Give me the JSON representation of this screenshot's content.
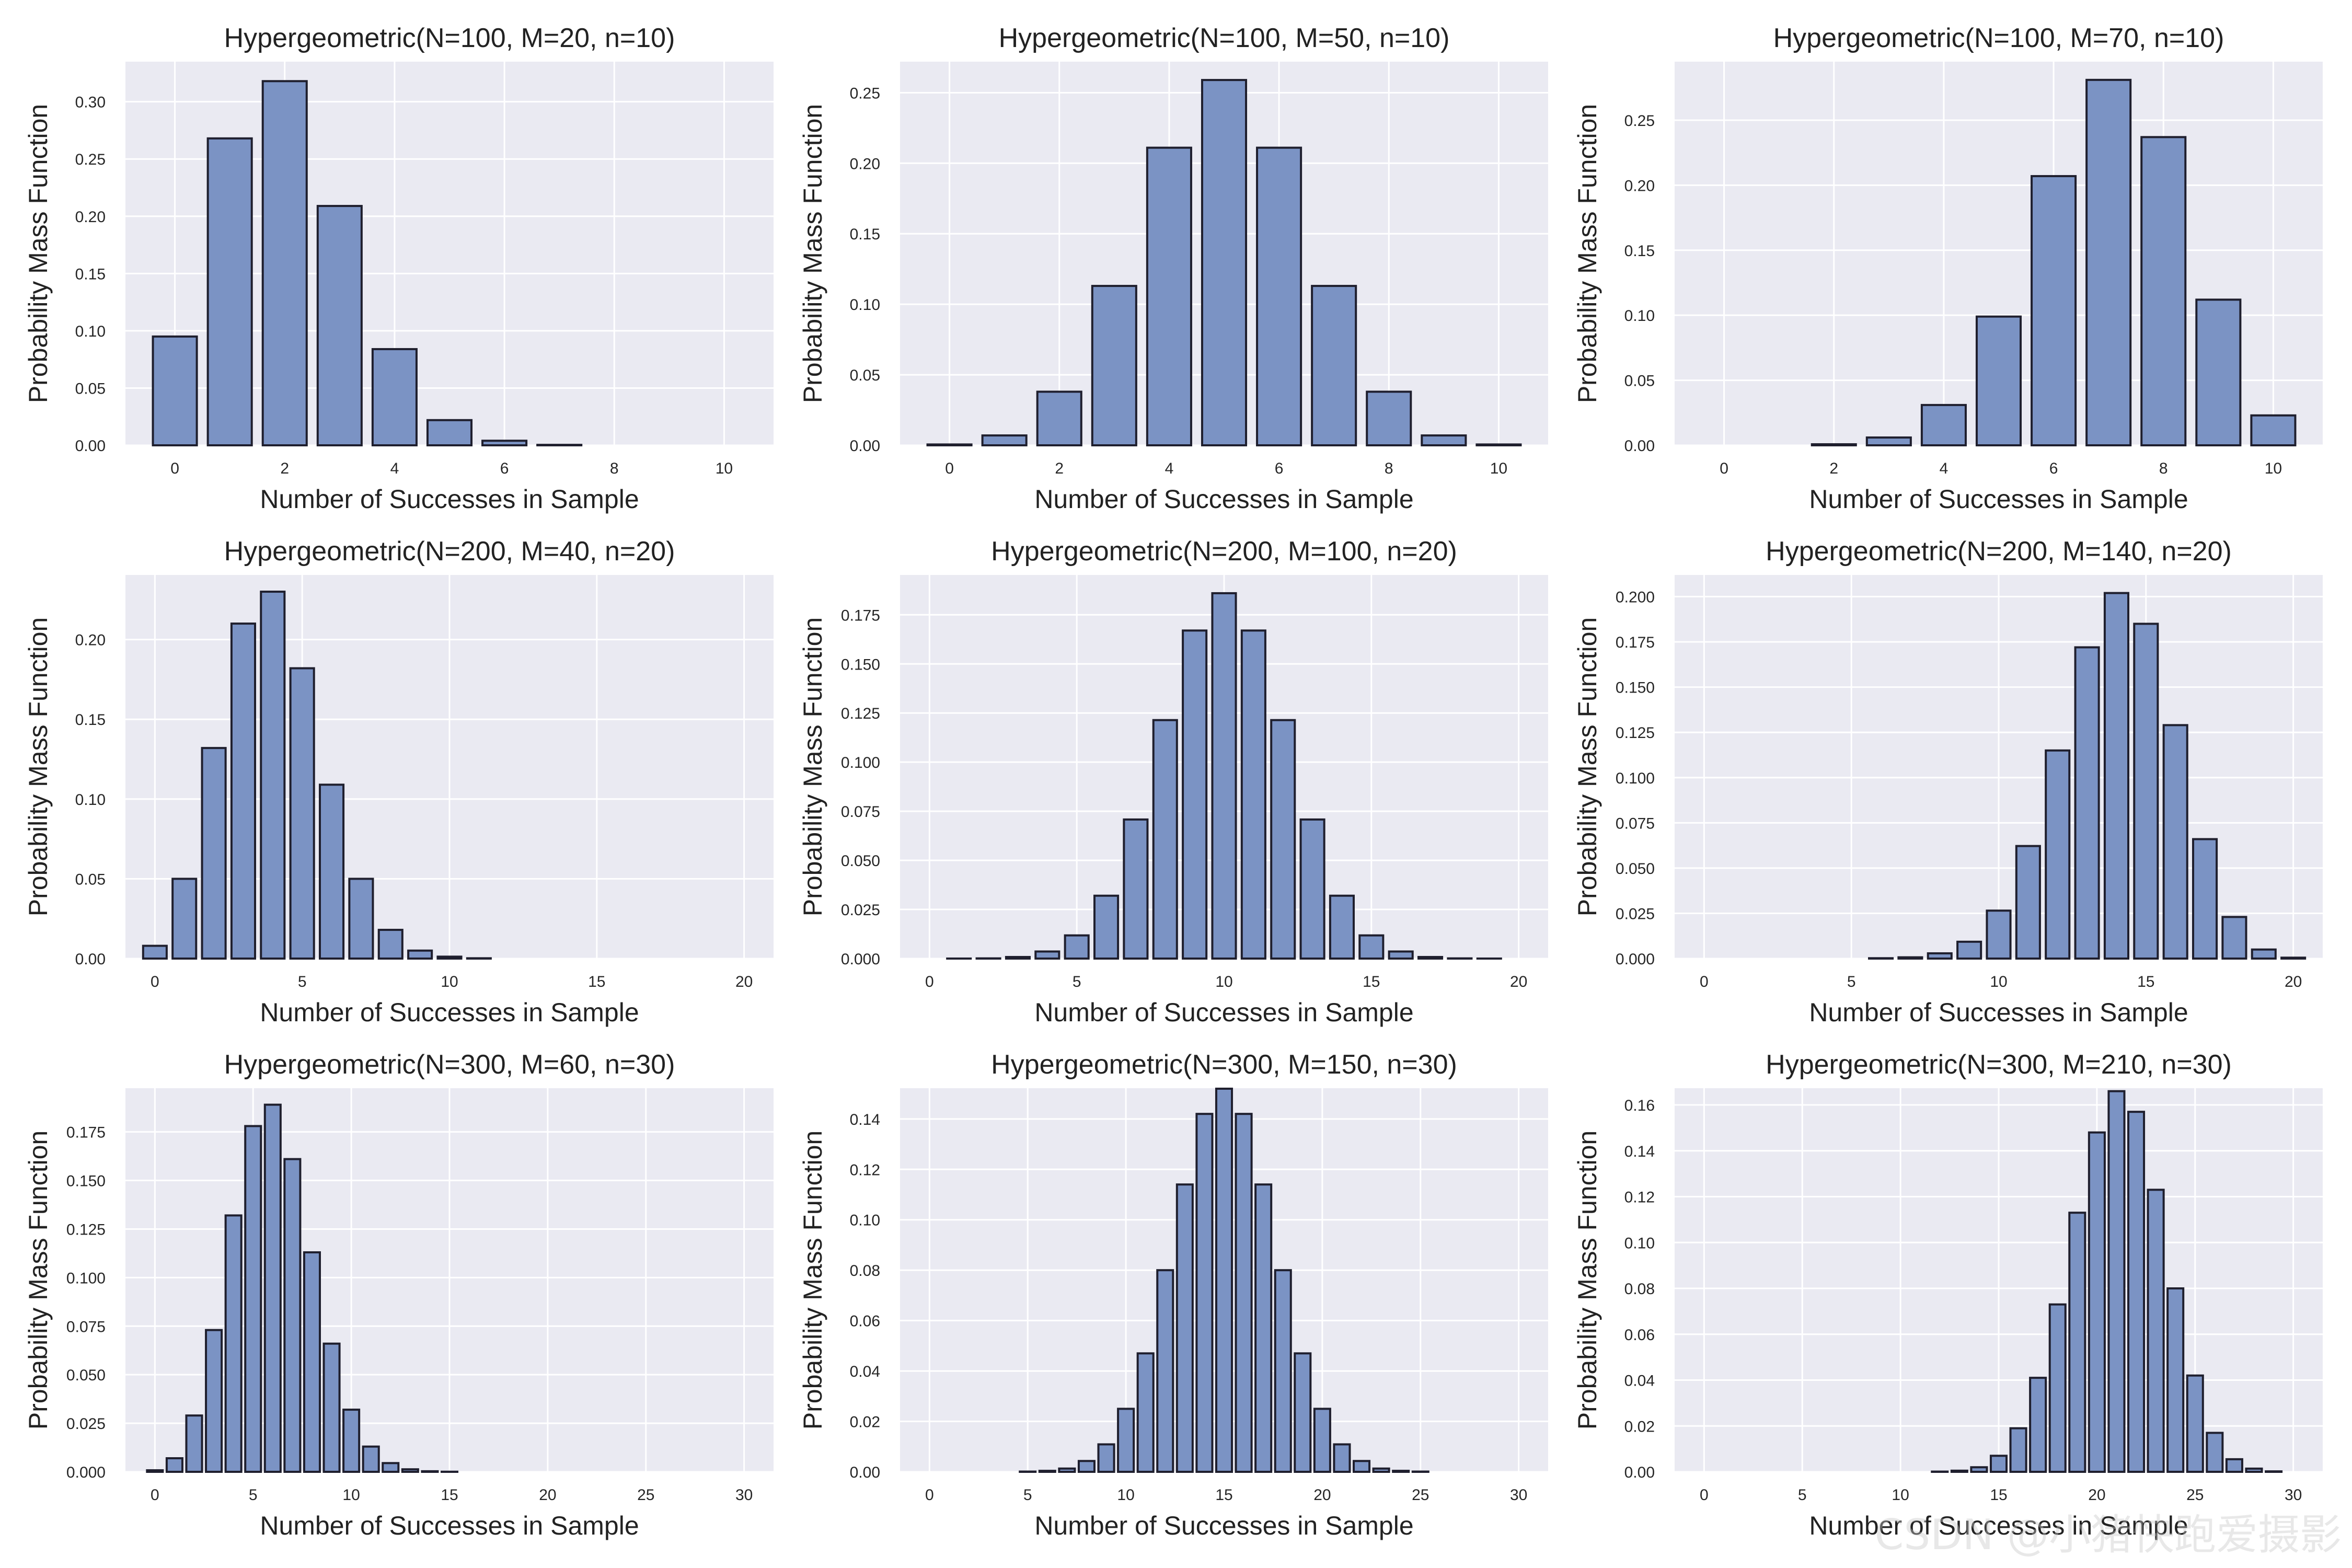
{
  "figure": {
    "xlabel": "Number of Successes in Sample",
    "ylabel": "Probability Mass Function",
    "colors": {
      "background": "#eaeaf2",
      "grid": "#ffffff",
      "bar_fill": "#7b93c4",
      "bar_edge": "#1f1f2e",
      "text": "#222222"
    }
  },
  "chart_data": [
    {
      "type": "bar",
      "title": "Hypergeometric(N=100, M=20, n=10)",
      "xlabel": "Number of Successes in Sample",
      "ylabel": "Probability Mass Function",
      "x": [
        0,
        1,
        2,
        3,
        4,
        5,
        6,
        7,
        8,
        9,
        10
      ],
      "values": [
        0.095,
        0.268,
        0.318,
        0.209,
        0.084,
        0.022,
        0.004,
        0.0004,
        0,
        0,
        0
      ],
      "xlim": [
        -0.9,
        10.9
      ],
      "ylim": [
        0,
        0.335
      ],
      "xticks": [
        0,
        2,
        4,
        6,
        8,
        10
      ],
      "yticks": [
        0.0,
        0.05,
        0.1,
        0.15,
        0.2,
        0.25,
        0.3
      ],
      "ytick_format": "0.00"
    },
    {
      "type": "bar",
      "title": "Hypergeometric(N=100, M=50, n=10)",
      "xlabel": "Number of Successes in Sample",
      "ylabel": "Probability Mass Function",
      "x": [
        0,
        1,
        2,
        3,
        4,
        5,
        6,
        7,
        8,
        9,
        10
      ],
      "values": [
        0.0006,
        0.007,
        0.038,
        0.113,
        0.211,
        0.259,
        0.211,
        0.113,
        0.038,
        0.007,
        0.0006
      ],
      "xlim": [
        -0.9,
        10.9
      ],
      "ylim": [
        0,
        0.272
      ],
      "xticks": [
        0,
        2,
        4,
        6,
        8,
        10
      ],
      "yticks": [
        0.0,
        0.05,
        0.1,
        0.15,
        0.2,
        0.25
      ],
      "ytick_format": "0.00"
    },
    {
      "type": "bar",
      "title": "Hypergeometric(N=100, M=70, n=10)",
      "xlabel": "Number of Successes in Sample",
      "ylabel": "Probability Mass Function",
      "x": [
        0,
        1,
        2,
        3,
        4,
        5,
        6,
        7,
        8,
        9,
        10
      ],
      "values": [
        0,
        0,
        0.0008,
        0.006,
        0.031,
        0.099,
        0.207,
        0.281,
        0.237,
        0.112,
        0.023
      ],
      "xlim": [
        -0.9,
        10.9
      ],
      "ylim": [
        0,
        0.295
      ],
      "xticks": [
        0,
        2,
        4,
        6,
        8,
        10
      ],
      "yticks": [
        0.0,
        0.05,
        0.1,
        0.15,
        0.2,
        0.25
      ],
      "ytick_format": "0.00"
    },
    {
      "type": "bar",
      "title": "Hypergeometric(N=200, M=40, n=20)",
      "xlabel": "Number of Successes in Sample",
      "ylabel": "Probability Mass Function",
      "x": [
        0,
        1,
        2,
        3,
        4,
        5,
        6,
        7,
        8,
        9,
        10,
        11,
        12,
        13,
        14,
        15,
        16,
        17,
        18,
        19,
        20
      ],
      "values": [
        0.008,
        0.05,
        0.132,
        0.21,
        0.23,
        0.182,
        0.109,
        0.05,
        0.018,
        0.005,
        0.0012,
        0.0002,
        0,
        0,
        0,
        0,
        0,
        0,
        0,
        0,
        0
      ],
      "xlim": [
        -1,
        21
      ],
      "ylim": [
        0,
        0.2405
      ],
      "xticks": [
        0,
        5,
        10,
        15,
        20
      ],
      "yticks": [
        0.0,
        0.05,
        0.1,
        0.15,
        0.2
      ],
      "ytick_format": "0.00"
    },
    {
      "type": "bar",
      "title": "Hypergeometric(N=200, M=100, n=20)",
      "xlabel": "Number of Successes in Sample",
      "ylabel": "Probability Mass Function",
      "x": [
        0,
        1,
        2,
        3,
        4,
        5,
        6,
        7,
        8,
        9,
        10,
        11,
        12,
        13,
        14,
        15,
        16,
        17,
        18,
        19,
        20
      ],
      "values": [
        0,
        1e-05,
        0.0001,
        0.0008,
        0.0036,
        0.0118,
        0.032,
        0.0708,
        0.1214,
        0.167,
        0.186,
        0.167,
        0.1214,
        0.0708,
        0.032,
        0.0118,
        0.0036,
        0.0008,
        0.0001,
        1e-05,
        0
      ],
      "xlim": [
        -1,
        21
      ],
      "ylim": [
        0,
        0.1953
      ],
      "xticks": [
        0,
        5,
        10,
        15,
        20
      ],
      "yticks": [
        0.0,
        0.025,
        0.05,
        0.075,
        0.1,
        0.125,
        0.15,
        0.175
      ],
      "ytick_format": "0.000"
    },
    {
      "type": "bar",
      "title": "Hypergeometric(N=200, M=140, n=20)",
      "xlabel": "Number of Successes in Sample",
      "ylabel": "Probability Mass Function",
      "x": [
        0,
        1,
        2,
        3,
        4,
        5,
        6,
        7,
        8,
        9,
        10,
        11,
        12,
        13,
        14,
        15,
        16,
        17,
        18,
        19,
        20
      ],
      "values": [
        0,
        0,
        0,
        0,
        0,
        0,
        0.0002,
        0.0007,
        0.0029,
        0.0093,
        0.0265,
        0.0622,
        0.115,
        0.172,
        0.202,
        0.185,
        0.129,
        0.066,
        0.023,
        0.005,
        0.0005
      ],
      "xlim": [
        -1,
        21
      ],
      "ylim": [
        0,
        0.212
      ],
      "xticks": [
        0,
        5,
        10,
        15,
        20
      ],
      "yticks": [
        0.0,
        0.025,
        0.05,
        0.075,
        0.1,
        0.125,
        0.15,
        0.175,
        0.2
      ],
      "ytick_format": "0.000"
    },
    {
      "type": "bar",
      "title": "Hypergeometric(N=300, M=60, n=30)",
      "xlabel": "Number of Successes in Sample",
      "ylabel": "Probability Mass Function",
      "x": [
        0,
        1,
        2,
        3,
        4,
        5,
        6,
        7,
        8,
        9,
        10,
        11,
        12,
        13,
        14,
        15,
        16,
        17,
        18,
        19,
        20,
        21,
        22,
        23,
        24,
        25,
        26,
        27,
        28,
        29,
        30
      ],
      "values": [
        0.0008,
        0.007,
        0.029,
        0.073,
        0.132,
        0.178,
        0.189,
        0.161,
        0.113,
        0.066,
        0.032,
        0.013,
        0.0045,
        0.0013,
        0.0003,
        6e-05,
        0,
        0,
        0,
        0,
        0,
        0,
        0,
        0,
        0,
        0,
        0,
        0,
        0,
        0,
        0
      ],
      "xlim": [
        -1.5,
        31.5
      ],
      "ylim": [
        0,
        0.1975
      ],
      "xticks": [
        0,
        5,
        10,
        15,
        20,
        25,
        30
      ],
      "yticks": [
        0.0,
        0.025,
        0.05,
        0.075,
        0.1,
        0.125,
        0.15,
        0.175
      ],
      "ytick_format": "0.000"
    },
    {
      "type": "bar",
      "title": "Hypergeometric(N=300, M=150, n=30)",
      "xlabel": "Number of Successes in Sample",
      "ylabel": "Probability Mass Function",
      "x": [
        0,
        1,
        2,
        3,
        4,
        5,
        6,
        7,
        8,
        9,
        10,
        11,
        12,
        13,
        14,
        15,
        16,
        17,
        18,
        19,
        20,
        21,
        22,
        23,
        24,
        25,
        26,
        27,
        28,
        29,
        30
      ],
      "values": [
        0,
        0,
        0,
        0,
        0,
        0.0001,
        0.0004,
        0.0013,
        0.0043,
        0.0109,
        0.025,
        0.047,
        0.08,
        0.114,
        0.142,
        0.152,
        0.142,
        0.114,
        0.08,
        0.047,
        0.025,
        0.0109,
        0.0043,
        0.0013,
        0.0004,
        0.0001,
        0,
        0,
        0,
        0,
        0
      ],
      "xlim": [
        -1.5,
        31.5
      ],
      "ylim": [
        0,
        0.1522
      ],
      "xticks": [
        0,
        5,
        10,
        15,
        20,
        25,
        30
      ],
      "yticks": [
        0.0,
        0.02,
        0.04,
        0.06,
        0.08,
        0.1,
        0.12,
        0.14
      ],
      "ytick_format": "0.00"
    },
    {
      "type": "bar",
      "title": "Hypergeometric(N=300, M=210, n=30)",
      "xlabel": "Number of Successes in Sample",
      "ylabel": "Probability Mass Function",
      "x": [
        0,
        1,
        2,
        3,
        4,
        5,
        6,
        7,
        8,
        9,
        10,
        11,
        12,
        13,
        14,
        15,
        16,
        17,
        18,
        19,
        20,
        21,
        22,
        23,
        24,
        25,
        26,
        27,
        28,
        29,
        30
      ],
      "values": [
        0,
        0,
        0,
        0,
        0,
        0,
        0,
        0,
        0,
        0,
        0,
        0,
        0.0001,
        0.0005,
        0.002,
        0.007,
        0.019,
        0.041,
        0.073,
        0.113,
        0.148,
        0.166,
        0.157,
        0.123,
        0.08,
        0.042,
        0.017,
        0.0055,
        0.0014,
        0.0002,
        0
      ],
      "xlim": [
        -1.5,
        31.5
      ],
      "ylim": [
        0,
        0.1673
      ],
      "xticks": [
        0,
        5,
        10,
        15,
        20,
        25,
        30
      ],
      "yticks": [
        0.0,
        0.02,
        0.04,
        0.06,
        0.08,
        0.1,
        0.12,
        0.14,
        0.16
      ],
      "ytick_format": "0.00"
    }
  ],
  "watermark": "CSDN @小猪快跑爱摄影"
}
